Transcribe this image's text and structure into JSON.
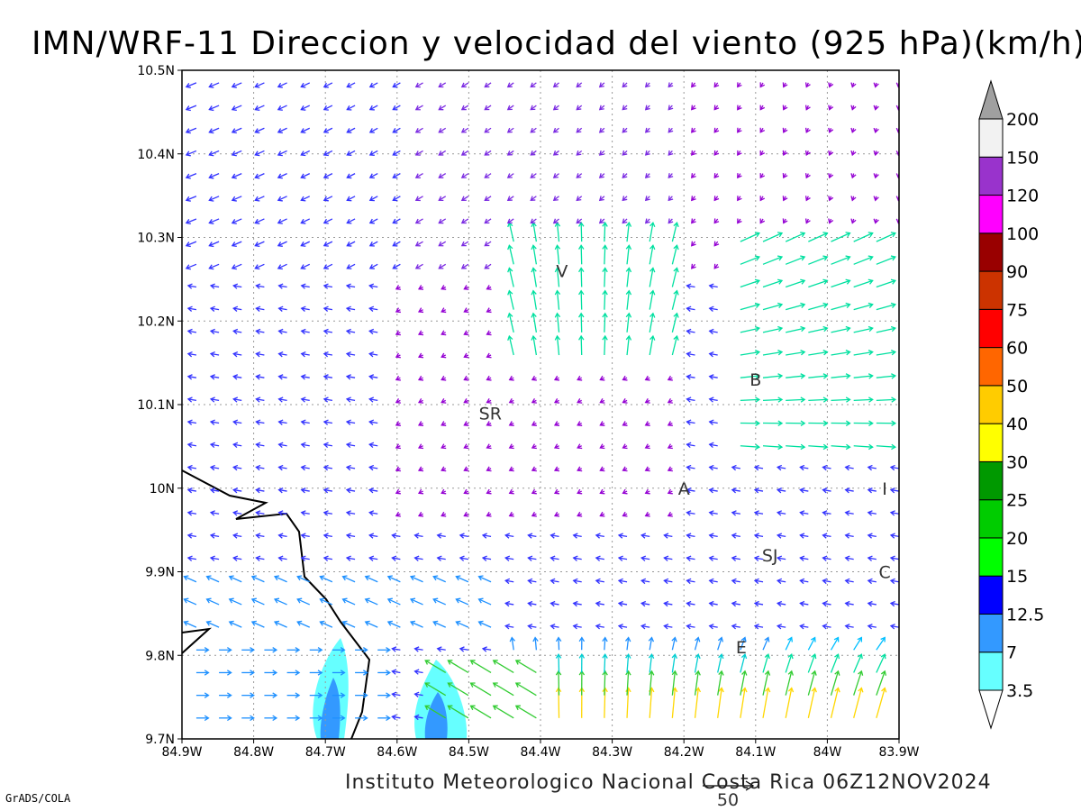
{
  "title": "IMN/WRF-11 Direccion y velocidad del viento (925 hPa)(km/h)",
  "footer": "Instituto Meteorologico Nacional Costa Rica 06Z12NOV2024",
  "credit": "GrADS/COLA",
  "map": {
    "lon_range": [
      -84.9,
      -83.9
    ],
    "lat_range": [
      9.7,
      10.5
    ],
    "grid": "dotted",
    "x_ticks": [
      "84.9W",
      "84.8W",
      "84.7W",
      "84.6W",
      "84.5W",
      "84.4W",
      "84.3W",
      "84.2W",
      "84.1W",
      "84W",
      "83.9W"
    ],
    "y_ticks": [
      "9.7N",
      "9.8N",
      "9.9N",
      "10N",
      "10.1N",
      "10.2N",
      "10.3N",
      "10.4N",
      "10.5N"
    ],
    "places": [
      {
        "name": "V",
        "lon": -84.37,
        "lat": 10.26
      },
      {
        "name": "SR",
        "lon": -84.47,
        "lat": 10.09
      },
      {
        "name": "B",
        "lon": -84.1,
        "lat": 10.13
      },
      {
        "name": "A",
        "lon": -84.2,
        "lat": 10.0
      },
      {
        "name": "I",
        "lon": -83.92,
        "lat": 10.0
      },
      {
        "name": "SJ",
        "lon": -84.08,
        "lat": 9.92
      },
      {
        "name": "C",
        "lon": -83.92,
        "lat": 9.9
      },
      {
        "name": "E",
        "lon": -84.12,
        "lat": 9.81
      }
    ],
    "reference_vector": {
      "label": "50",
      "unit": "km/h"
    }
  },
  "colorbar": {
    "levels": [
      "3.5",
      "7",
      "12.5",
      "15",
      "20",
      "25",
      "30",
      "40",
      "50",
      "60",
      "75",
      "90",
      "100",
      "120",
      "150",
      "200"
    ],
    "colors": [
      "#66ffff",
      "#3399ff",
      "#0000ff",
      "#00ff00",
      "#00cc00",
      "#009900",
      "#ffff00",
      "#ffcc00",
      "#ff6600",
      "#ff0000",
      "#cc3300",
      "#990000",
      "#ff00ff",
      "#9933cc",
      "#f2f2f2",
      "#a0a0a0"
    ]
  }
}
